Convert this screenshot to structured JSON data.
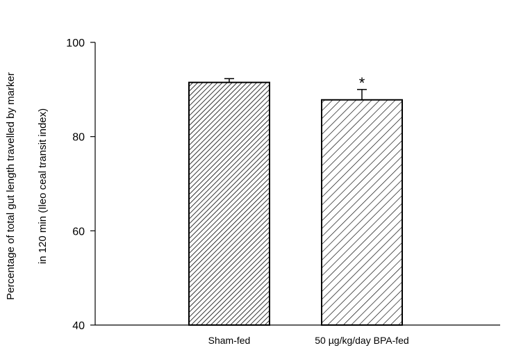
{
  "chart_data": {
    "type": "bar",
    "title": "",
    "xlabel": "",
    "ylabel_line1": "Percentage of total gut length travelled by marker",
    "ylabel_line2": "in 120 min  (Ileo ceal  transit index)",
    "categories": [
      "Sham-fed",
      "50 µg/kg/day BPA-fed"
    ],
    "values": [
      91.5,
      87.8
    ],
    "errors": [
      0.8,
      2.2
    ],
    "annotations": [
      "",
      "*"
    ],
    "ylim": [
      40,
      100
    ],
    "yticks": [
      "40",
      "60",
      "80",
      "100"
    ],
    "hatch": [
      "dense diagonal",
      "sparse diagonal"
    ],
    "grid": false,
    "bar_color": "#ffffff",
    "line_color": "#000000"
  }
}
